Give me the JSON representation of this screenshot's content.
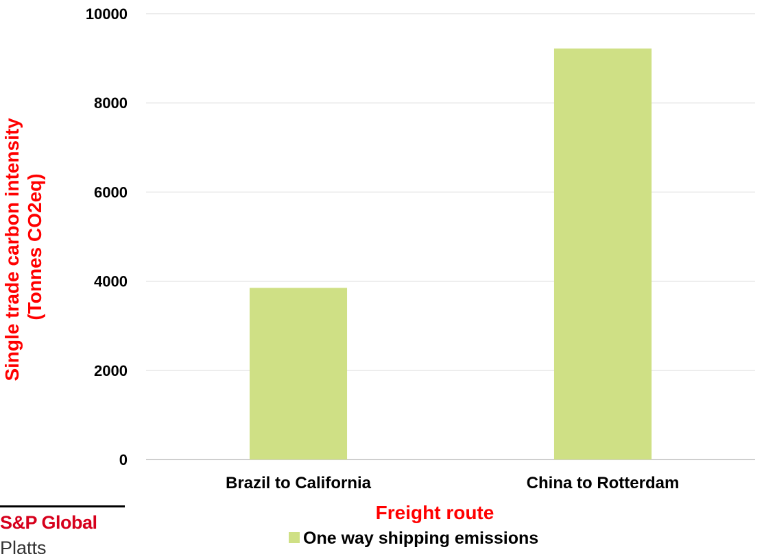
{
  "chart_data": {
    "type": "bar",
    "categories": [
      "Brazil to California",
      "China to Rotterdam"
    ],
    "series": [
      {
        "name": "One way shipping emissions",
        "values": [
          3850,
          9220
        ],
        "color": "#cfe085"
      }
    ],
    "xlabel": "Freight route",
    "ylabel_lines": [
      "Single trade carbon intensity",
      "(Tonnes CO2eq)"
    ],
    "ylim": [
      0,
      10000
    ],
    "yticks": [
      "0",
      "2000",
      "4000",
      "6000",
      "8000",
      "10000"
    ],
    "grid": true,
    "legend_position": "bottom",
    "axis_title_color": "#ff0000"
  },
  "logo": {
    "brand": "S&P Global",
    "sub": "Platts",
    "brand_color": "#d6001c"
  }
}
